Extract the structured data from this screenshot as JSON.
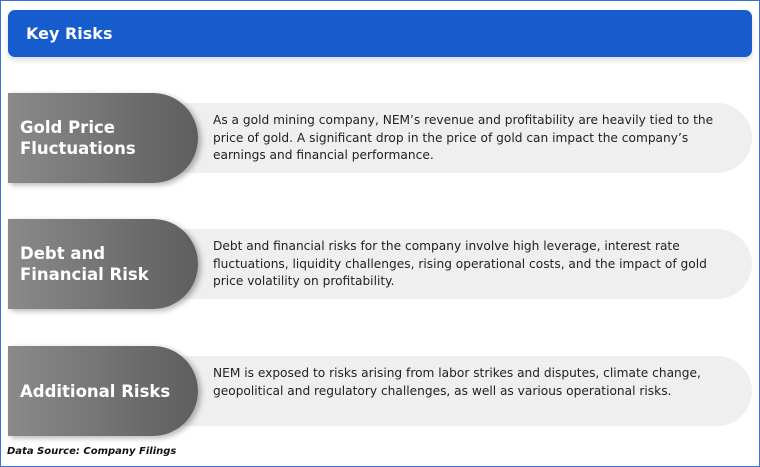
{
  "header": {
    "title": "Key Risks"
  },
  "risks": [
    {
      "title": "Gold Price Fluctuations",
      "description": "As a gold mining company, NEM’s revenue and profitability are heavily tied to the price of gold. A significant drop in the price of gold can impact the company’s earnings and financial performance."
    },
    {
      "title": "Debt and Financial Risk",
      "description": "Debt and financial risks for the company involve high leverage, interest rate fluctuations, liquidity challenges, rising operational costs, and the impact of gold price volatility on profitability."
    },
    {
      "title": "Additional Risks",
      "description": "NEM is exposed to risks arising from labor strikes and disputes, climate change, geopolitical and regulatory challenges, as well as various operational risks."
    }
  ],
  "footer": {
    "source": "Data Source: Company Filings"
  },
  "colors": {
    "header": "#165ccd",
    "pill": "#6e6e6e",
    "description_bg": "#efefef"
  }
}
